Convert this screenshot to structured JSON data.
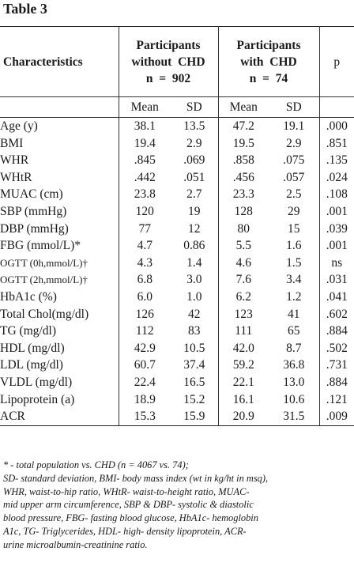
{
  "title": "Table 3",
  "header": {
    "characteristics": "Characteristics",
    "group1": {
      "line1": "Participants",
      "line2": "without  CHD",
      "line3": "n  =  902"
    },
    "group2": {
      "line1": "Participants",
      "line2": "with  CHD",
      "line3": "n  =  74"
    },
    "p": "p",
    "mean": "Mean",
    "sd": "SD"
  },
  "rows": [
    {
      "label": "Age (y)",
      "m1": "38.1",
      "sd1": "13.5",
      "m2": "47.2",
      "sd2": "19.1",
      "p": ".000"
    },
    {
      "label": "BMI",
      "m1": "19.4",
      "sd1": "2.9",
      "m2": "19.5",
      "sd2": "2.9",
      "p": ".851"
    },
    {
      "label": "WHR",
      "m1": ".845",
      "sd1": ".069",
      "m2": ".858",
      "sd2": ".075",
      "p": ".135"
    },
    {
      "label": "WHtR",
      "m1": ".442",
      "sd1": ".051",
      "m2": ".456",
      "sd2": ".057",
      "p": ".024"
    },
    {
      "label": "MUAC (cm)",
      "m1": "23.8",
      "sd1": "2.7",
      "m2": "23.3",
      "sd2": "2.5",
      "p": ".108"
    },
    {
      "label": "SBP (mmHg)",
      "m1": "120",
      "sd1": "19",
      "m2": "128",
      "sd2": "29",
      "p": ".001"
    },
    {
      "label": "DBP (mmHg)",
      "m1": "77",
      "sd1": "12",
      "m2": "80",
      "sd2": "15",
      "p": ".039"
    },
    {
      "label": "FBG (mmol/L)*",
      "m1": "4.7",
      "sd1": "0.86",
      "m2": "5.5",
      "sd2": "1.6",
      "p": ".001"
    },
    {
      "label": "OGTT (0h,mmol/L)†",
      "m1": "4.3",
      "sd1": "1.4",
      "m2": "4.6",
      "sd2": "1.5",
      "p": "ns"
    },
    {
      "label": "OGTT (2h,mmol/L)†",
      "m1": "6.8",
      "sd1": "3.0",
      "m2": "7.6",
      "sd2": "3.4",
      "p": ".031"
    },
    {
      "label": "HbA1c (%)",
      "m1": "6.0",
      "sd1": "1.0",
      "m2": "6.2",
      "sd2": "1.2",
      "p": ".041"
    },
    {
      "label": "Total Chol(mg/dl)",
      "m1": "126",
      "sd1": "42",
      "m2": "123",
      "sd2": "41",
      "p": ".602"
    },
    {
      "label": "TG (mg/dl)",
      "m1": "112",
      "sd1": "83",
      "m2": "111",
      "sd2": "65",
      "p": ".884"
    },
    {
      "label": "HDL (mg/dl)",
      "m1": "42.9",
      "sd1": "10.5",
      "m2": "42.0",
      "sd2": "8.7",
      "p": ".502"
    },
    {
      "label": "LDL (mg/dl)",
      "m1": "60.7",
      "sd1": "37.4",
      "m2": "59.2",
      "sd2": "36.8",
      "p": ".731"
    },
    {
      "label": "VLDL (mg/dl)",
      "m1": "22.4",
      "sd1": "16.5",
      "m2": "22.1",
      "sd2": "13.0",
      "p": ".884"
    },
    {
      "label": "Lipoprotein (a)",
      "m1": "18.9",
      "sd1": "15.2",
      "m2": "16.1",
      "sd2": "10.6",
      "p": ".121"
    },
    {
      "label": "ACR",
      "m1": "15.3",
      "sd1": "15.9",
      "m2": "20.9",
      "sd2": "31.5",
      "p": ".009"
    }
  ],
  "footnote": {
    "line1": "* - total population vs. CHD (n = 4067 vs. 74);",
    "line2": "SD- standard deviation, BMI- body mass index (wt in kg/ht in msq),",
    "line3": "WHR, waist-to-hip ratio, WHtR- waist-to-height ratio, MUAC-",
    "line4": "mid upper arm circumference, SBP & DBP- systolic & diastolic",
    "line5": "blood pressure, FBG- fasting blood glucose, HbA1c- hemoglobin",
    "line6": "A1c, TG- Triglycerides, HDL- high- density lipoprotein, ACR-",
    "line7": "urine microalbumin-creatinine ratio."
  }
}
